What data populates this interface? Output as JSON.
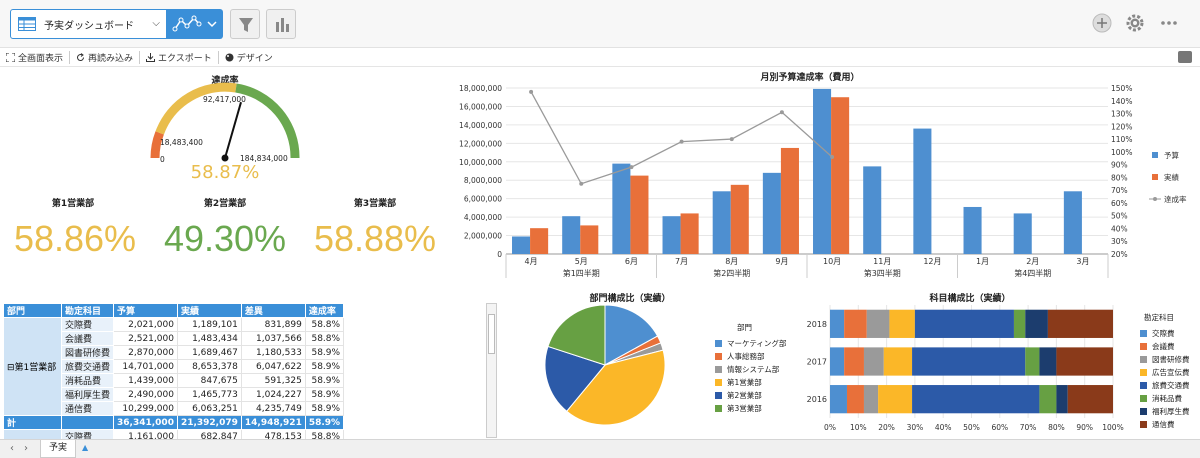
{
  "toolbar": {
    "dashboard_name": "予実ダッシュボード",
    "actions": [
      "全画面表示",
      "再読み込み",
      "エクスポート",
      "デザイン"
    ]
  },
  "gauge": {
    "title": "達成率",
    "min_label": "0",
    "mark1_label": "18,483,400",
    "target_label": "92,417,000",
    "max_label": "184,834,000",
    "value_label": "58.87%",
    "value": 0.5887
  },
  "kpis": [
    {
      "label": "第1営業部",
      "value": "58.86%",
      "color": "#e9bd4c"
    },
    {
      "label": "第2営業部",
      "value": "49.30%",
      "color": "#6aa84f"
    },
    {
      "label": "第3営業部",
      "value": "58.88%",
      "color": "#e9bd4c"
    }
  ],
  "colors": {
    "budget": "#4e8fd0",
    "actual": "#e8703a",
    "rate": "#9a9a9a",
    "accent": "#3a8fd8"
  },
  "chart_data": [
    {
      "type": "bar",
      "title": "月別予算達成率（費用）",
      "categories": [
        "4月",
        "5月",
        "6月",
        "7月",
        "8月",
        "9月",
        "10月",
        "11月",
        "12月",
        "1月",
        "2月",
        "3月"
      ],
      "groups": [
        "第1四半期",
        "第2四半期",
        "第3四半期",
        "第4四半期"
      ],
      "series": [
        {
          "name": "予算",
          "values": [
            1900000,
            4100000,
            9800000,
            4100000,
            6800000,
            8800000,
            17900000,
            9500000,
            13600000,
            5100000,
            4400000,
            6800000
          ]
        },
        {
          "name": "実績",
          "values": [
            2800000,
            3100000,
            8500000,
            4400000,
            7500000,
            11500000,
            17000000,
            null,
            null,
            null,
            null,
            null
          ]
        },
        {
          "name": "達成率",
          "axis": "right",
          "values": [
            147,
            75,
            88,
            108,
            110,
            131,
            96,
            null,
            null,
            null,
            null,
            null
          ]
        }
      ],
      "ylim": [
        0,
        18000000
      ],
      "y_ticks": [
        "0",
        "2,000,000",
        "4,000,000",
        "6,000,000",
        "8,000,000",
        "10,000,000",
        "12,000,000",
        "14,000,000",
        "16,000,000",
        "18,000,000"
      ],
      "y2lim": [
        20,
        150
      ],
      "y2_ticks": [
        "20%",
        "30%",
        "40%",
        "50%",
        "60%",
        "70%",
        "80%",
        "90%",
        "100%",
        "110%",
        "120%",
        "130%",
        "140%",
        "150%"
      ],
      "legend": "right"
    },
    {
      "type": "pie",
      "title": "部門構成比（実績）",
      "legend_title": "部門",
      "labels": [
        "マーケティング部",
        "人事総務部",
        "情報システム部",
        "第1営業部",
        "第2営業部",
        "第3営業部"
      ],
      "values": [
        17,
        2,
        2,
        40,
        19,
        20
      ],
      "colors": [
        "#4e8fd0",
        "#e8703a",
        "#9a9a9a",
        "#fbb728",
        "#2c5aa8",
        "#67a043"
      ]
    },
    {
      "type": "bar",
      "title": "科目構成比（実績）",
      "orientation": "horizontal-stacked-100",
      "categories": [
        "2018",
        "2017",
        "2016"
      ],
      "legend_title": "勘定科目",
      "series": [
        {
          "name": "交際費",
          "color": "#4e8fd0",
          "values": [
            5,
            5,
            6
          ]
        },
        {
          "name": "会議費",
          "color": "#e8703a",
          "values": [
            8,
            7,
            6
          ]
        },
        {
          "name": "図書研修費",
          "color": "#9a9a9a",
          "values": [
            8,
            7,
            5
          ]
        },
        {
          "name": "広告宣伝費",
          "color": "#fbb728",
          "values": [
            9,
            10,
            12
          ]
        },
        {
          "name": "旅費交通費",
          "color": "#2c5aa8",
          "values": [
            35,
            40,
            45
          ]
        },
        {
          "name": "消耗品費",
          "color": "#67a043",
          "values": [
            4,
            5,
            6
          ]
        },
        {
          "name": "福利厚生費",
          "color": "#1c3d6e",
          "values": [
            8,
            6,
            4
          ]
        },
        {
          "name": "通信費",
          "color": "#8a3a1a",
          "values": [
            23,
            20,
            16
          ]
        }
      ],
      "x_ticks": [
        "0%",
        "10%",
        "20%",
        "30%",
        "40%",
        "50%",
        "60%",
        "70%",
        "80%",
        "90%",
        "100%"
      ]
    }
  ],
  "pivot": {
    "headers": [
      "部門",
      "勘定科目",
      "予算",
      "実績",
      "差異",
      "達成率"
    ],
    "dept": "第1営業部",
    "rows": [
      [
        "交際費",
        "2,021,000",
        "1,189,101",
        "831,899",
        "58.8%"
      ],
      [
        "会議費",
        "2,521,000",
        "1,483,434",
        "1,037,566",
        "58.8%"
      ],
      [
        "図書研修費",
        "2,870,000",
        "1,689,467",
        "1,180,533",
        "58.9%"
      ],
      [
        "旅費交通費",
        "14,701,000",
        "8,653,378",
        "6,047,622",
        "58.9%"
      ],
      [
        "消耗品費",
        "1,439,000",
        "847,675",
        "591,325",
        "58.9%"
      ],
      [
        "福利厚生費",
        "2,490,000",
        "1,465,773",
        "1,024,227",
        "58.9%"
      ],
      [
        "通信費",
        "10,299,000",
        "6,063,251",
        "4,235,749",
        "58.9%"
      ]
    ],
    "total": [
      "計",
      "",
      "36,341,000",
      "21,392,079",
      "14,948,921",
      "58.9%"
    ],
    "next_row": [
      "交際費",
      "1,161,000",
      "682,847",
      "478,153",
      "58.8%"
    ]
  },
  "footer": {
    "sheet_tab": "予実"
  }
}
